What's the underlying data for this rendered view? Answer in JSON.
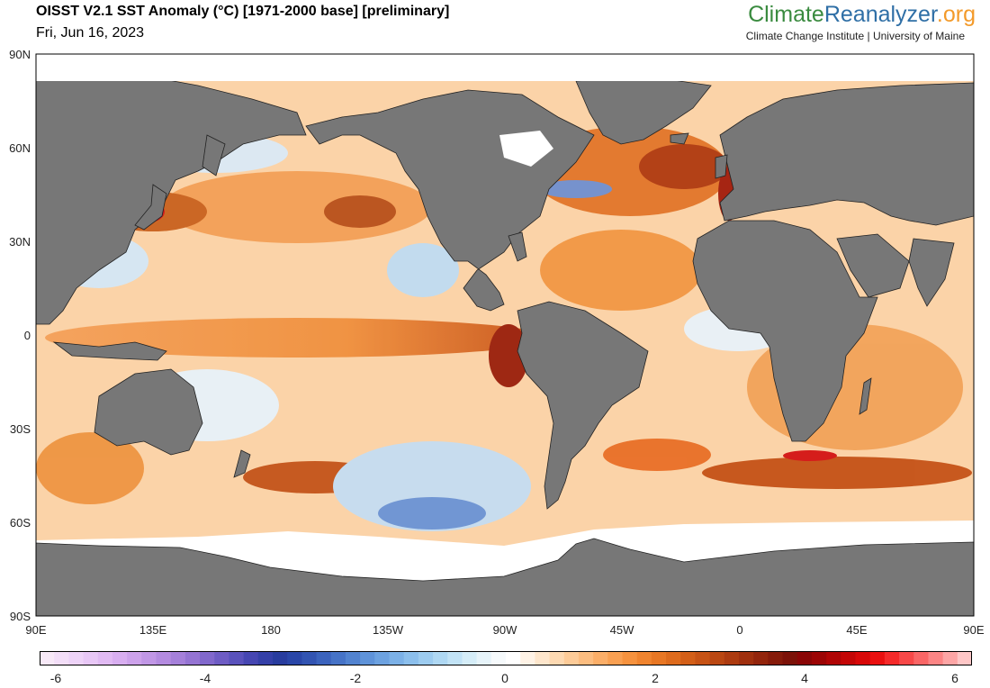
{
  "header": {
    "title": "OISST V2.1 SST Anomaly (°C) [1971-2000 base] [preliminary]",
    "date": "Fri, Jun 16, 2023",
    "brand": {
      "part1": "Climate",
      "part2": "Reanalyzer",
      "part3": ".org"
    },
    "brand_sub": "Climate Change Institute | University of Maine"
  },
  "map": {
    "lat_labels": [
      "90N",
      "60N",
      "30N",
      "0",
      "30S",
      "60S",
      "90S"
    ],
    "lon_labels": [
      "90E",
      "135E",
      "180",
      "135W",
      "90W",
      "45W",
      "0",
      "45E",
      "90E"
    ],
    "colors": {
      "land": "#777777",
      "ice": "#ffffff",
      "frame": "#000000"
    }
  },
  "colorbar": {
    "ticks": [
      "-6",
      "-4",
      "-2",
      "0",
      "2",
      "4",
      "6"
    ],
    "colors": [
      "#f8e9f8",
      "#f3def8",
      "#eed3f8",
      "#e8c7f6",
      "#e1baf3",
      "#d8aef0",
      "#cda2eb",
      "#c197e6",
      "#b48be0",
      "#a580da",
      "#9574d3",
      "#8168cc",
      "#6e5cc4",
      "#5a52bc",
      "#4646b2",
      "#3540a8",
      "#283c9e",
      "#2a46a8",
      "#3254b2",
      "#3b63bd",
      "#4673c7",
      "#5283d0",
      "#5f93d9",
      "#6da2e0",
      "#7cb1e7",
      "#8cbfec",
      "#9dccf0",
      "#afd8f3",
      "#c2e3f6",
      "#d5edf8",
      "#e7f4fa",
      "#f6fafc",
      "#ffffff",
      "#fff3e6",
      "#fee6cc",
      "#fdd9b2",
      "#fdcb98",
      "#fcbd80",
      "#fbae68",
      "#f9a052",
      "#f6923e",
      "#f0842f",
      "#e87724",
      "#de6b1d",
      "#d35f18",
      "#c75315",
      "#ba4712",
      "#ad3b10",
      "#a0300e",
      "#93250c",
      "#861b0a",
      "#7c1208",
      "#8a0606",
      "#9c0505",
      "#b00505",
      "#c40606",
      "#d80808",
      "#ea1010",
      "#f52a2a",
      "#f84848",
      "#fa6666",
      "#fc8585",
      "#fda5a5",
      "#fec6c6"
    ]
  }
}
